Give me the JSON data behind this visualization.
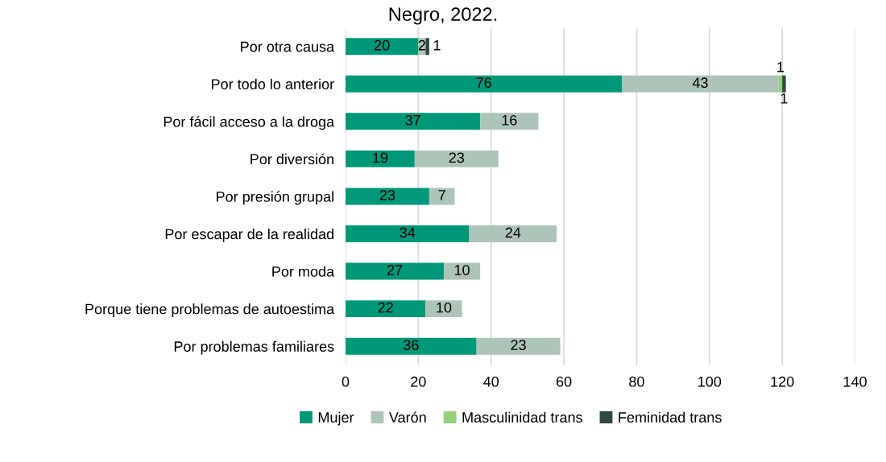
{
  "chart_data": {
    "type": "bar",
    "orientation": "horizontal",
    "stacked": true,
    "title": "Negro, 2022.",
    "categories": [
      "Por otra causa",
      "Por todo lo anterior",
      "Por fácil acceso a la droga",
      "Por diversión",
      "Por presión grupal",
      "Por escapar de la realidad",
      "Por moda",
      "Porque tiene problemas de autoestima",
      "Por problemas familiares"
    ],
    "series": [
      {
        "name": "Mujer",
        "color": "#009878",
        "values": [
          20,
          76,
          37,
          19,
          23,
          34,
          27,
          22,
          36
        ]
      },
      {
        "name": "Varón",
        "color": "#adc4b8",
        "values": [
          2,
          43,
          16,
          23,
          7,
          24,
          10,
          10,
          23
        ]
      },
      {
        "name": "Masculinidad trans",
        "color": "#92d27a",
        "values": [
          null,
          1,
          null,
          null,
          null,
          null,
          null,
          null,
          null
        ]
      },
      {
        "name": "Feminidad trans",
        "color": "#2f4a3f",
        "values": [
          1,
          1,
          null,
          null,
          null,
          null,
          null,
          null,
          null
        ]
      }
    ],
    "xlim": [
      0,
      140
    ],
    "xticks": [
      0,
      20,
      40,
      60,
      80,
      100,
      120,
      140
    ],
    "grid": "x",
    "legend": "bottom",
    "data_labels": true
  }
}
